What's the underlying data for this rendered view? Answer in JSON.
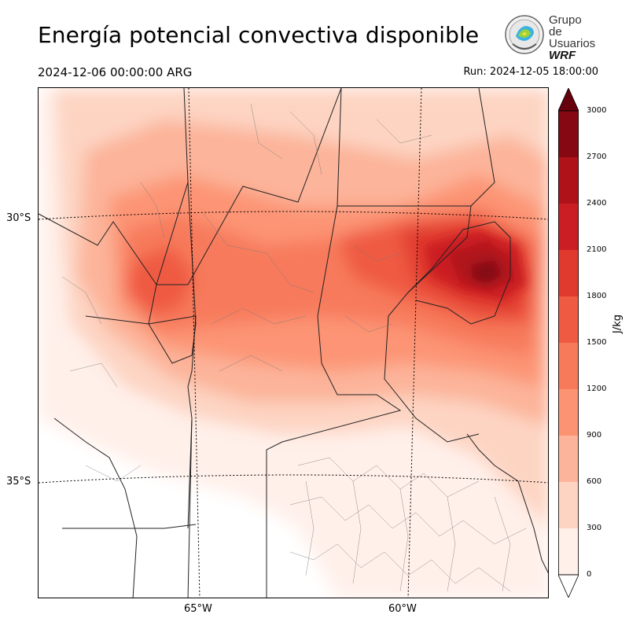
{
  "header": {
    "title": "Energía potencial convectiva disponible",
    "valid_time": "2024-12-06 00:00:00 ARG",
    "run_time": "Run: 2024-12-05 18:00:00"
  },
  "logo": {
    "line1": "Grupo de",
    "line2": "Usuarios",
    "line3": "WRF"
  },
  "axes": {
    "lat_labels": [
      "30°S",
      "35°S"
    ],
    "lon_labels": [
      "65°W",
      "60°W"
    ]
  },
  "colorbar": {
    "unit": "J/kg",
    "ticks": [
      "0",
      "300",
      "600",
      "900",
      "1200",
      "1500",
      "1800",
      "2100",
      "2400",
      "2700",
      "3000"
    ],
    "colors": [
      "#fff0ea",
      "#fdd4c2",
      "#fcb49a",
      "#fc9474",
      "#f77a5b",
      "#ef5a43",
      "#e03a2f",
      "#cb1e24",
      "#b0121a",
      "#850812"
    ],
    "extend_over_color": "#67000d",
    "extend_under_color": "#ffffff"
  }
}
